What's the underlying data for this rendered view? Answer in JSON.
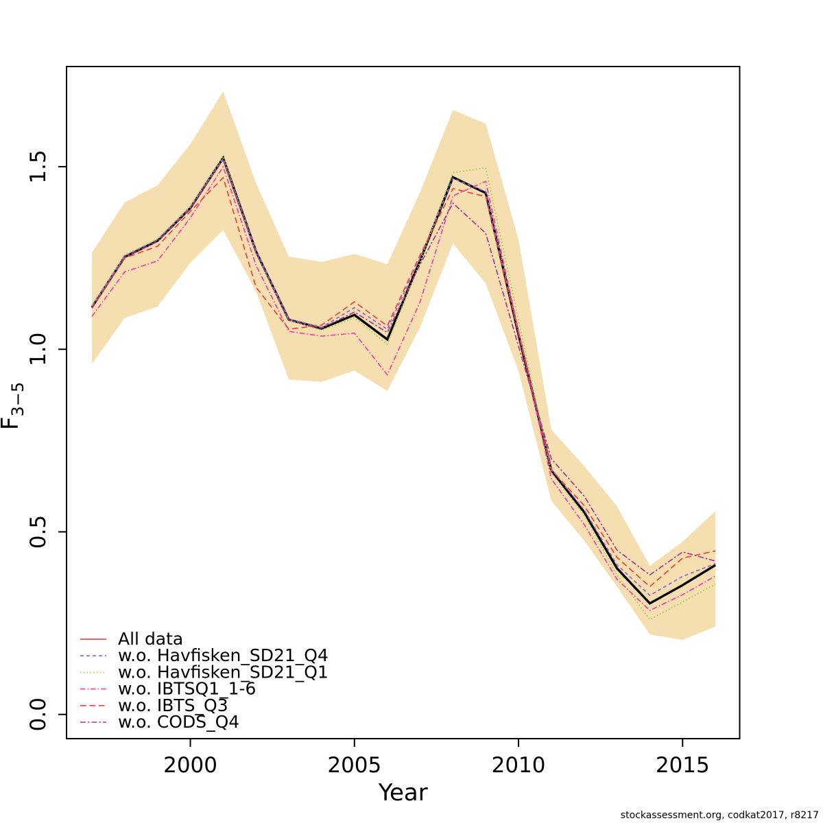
{
  "footer": "stockassessment.org, codkat2017, r8217",
  "chart_data": {
    "type": "line",
    "title": "",
    "xlabel": "Year",
    "ylabel": {
      "base": "F",
      "sub": "3−5"
    },
    "x_ticks": [
      2000,
      2005,
      2010,
      2015
    ],
    "y_ticks": [
      {
        "v": 0.0,
        "label": "0.0"
      },
      {
        "v": 0.5,
        "label": "0.5"
      },
      {
        "v": 1.0,
        "label": "1.0"
      },
      {
        "v": 1.5,
        "label": "1.5"
      }
    ],
    "xlim": [
      1997,
      2016
    ],
    "ylim": [
      0.0,
      1.77
    ],
    "grid": "off",
    "legend_position": "bottom-left",
    "years": [
      1997,
      1998,
      1999,
      2000,
      2001,
      2002,
      2003,
      2004,
      2005,
      2006,
      2007,
      2008,
      2009,
      2010,
      2011,
      2012,
      2013,
      2014,
      2015,
      2016
    ],
    "band": {
      "name": "confidence-band",
      "color": "#f5deb0",
      "upper": [
        1.265,
        1.402,
        1.449,
        1.562,
        1.706,
        1.455,
        1.254,
        1.239,
        1.261,
        1.233,
        1.43,
        1.655,
        1.618,
        1.3,
        0.78,
        0.68,
        0.57,
        0.407,
        0.473,
        0.557
      ],
      "lower": [
        0.96,
        1.086,
        1.117,
        1.237,
        1.327,
        1.158,
        0.917,
        0.911,
        0.942,
        0.886,
        1.06,
        1.29,
        1.18,
        0.94,
        0.585,
        0.476,
        0.35,
        0.219,
        0.204,
        0.241
      ]
    },
    "series": [
      {
        "id": "all-data",
        "label": "All data",
        "color": "#ee4f4b",
        "dash": "solid",
        "width": 2.2,
        "values": [
          1.115,
          1.253,
          1.297,
          1.387,
          1.524,
          1.268,
          1.081,
          1.057,
          1.094,
          1.027,
          1.243,
          1.471,
          1.428,
          1.04,
          0.668,
          0.554,
          0.4,
          0.304,
          0.354,
          0.409
        ]
      },
      {
        "id": "base-run",
        "label": null,
        "color": "#000000",
        "dash": "solid",
        "width": 3.4,
        "values": [
          1.115,
          1.253,
          1.297,
          1.387,
          1.524,
          1.268,
          1.081,
          1.057,
          1.094,
          1.027,
          1.243,
          1.471,
          1.428,
          1.04,
          0.668,
          0.554,
          0.4,
          0.304,
          0.354,
          0.409
        ]
      },
      {
        "id": "wo-havfisken-sd21-q4",
        "label": "w.o. Havfisken_SD21_Q4",
        "color": "#8f62d4",
        "dash": "dashed",
        "width": 1.7,
        "values": [
          1.118,
          1.256,
          1.3,
          1.39,
          1.522,
          1.272,
          1.083,
          1.06,
          1.114,
          1.055,
          1.25,
          1.468,
          1.432,
          1.045,
          0.672,
          0.56,
          0.41,
          0.326,
          0.378,
          0.413
        ]
      },
      {
        "id": "wo-havfisken-sd21-q1",
        "label": "w.o. Havfisken_SD21_Q1",
        "color": "#a0cc44",
        "dash": "dotted",
        "width": 1.9,
        "values": [
          1.12,
          1.258,
          1.302,
          1.392,
          1.528,
          1.262,
          1.08,
          1.052,
          1.086,
          1.014,
          1.24,
          1.484,
          1.497,
          1.08,
          0.662,
          0.545,
          0.382,
          0.26,
          0.308,
          0.357
        ]
      },
      {
        "id": "wo-ibtsq1-1-6",
        "label": "w.o. IBTSQ1_1-6",
        "color": "#f33fa7",
        "dash": "dashdot",
        "width": 1.7,
        "values": [
          1.09,
          1.212,
          1.242,
          1.36,
          1.5,
          1.23,
          1.049,
          1.036,
          1.044,
          0.93,
          1.13,
          1.42,
          1.46,
          1.05,
          0.645,
          0.52,
          0.37,
          0.285,
          0.328,
          0.379
        ]
      },
      {
        "id": "wo-ibts-q3",
        "label": "w.o. IBTS_Q3",
        "color": "#f0413d",
        "dash": "longdash",
        "width": 1.7,
        "values": [
          1.112,
          1.25,
          1.282,
          1.378,
          1.47,
          1.17,
          1.055,
          1.066,
          1.13,
          1.064,
          1.258,
          1.44,
          1.418,
          1.042,
          0.67,
          0.572,
          0.43,
          0.35,
          0.428,
          0.448
        ]
      },
      {
        "id": "wo-cods-q4",
        "label": "w.o. CODS_Q4",
        "color": "#a53a90",
        "dash": "twodash",
        "width": 1.7,
        "values": [
          1.113,
          1.252,
          1.295,
          1.386,
          1.52,
          1.265,
          1.079,
          1.058,
          1.102,
          1.046,
          1.232,
          1.4,
          1.318,
          1.008,
          0.7,
          0.598,
          0.45,
          0.382,
          0.445,
          0.42
        ]
      }
    ]
  }
}
